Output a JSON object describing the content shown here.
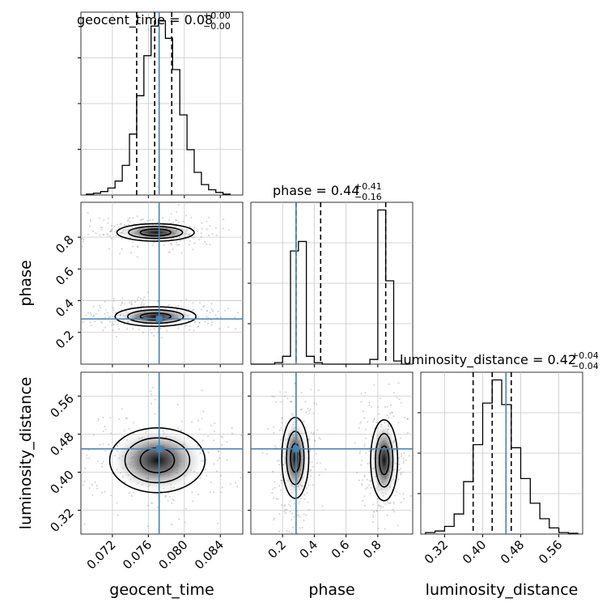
{
  "chart_data": {
    "type": "corner",
    "parameters": [
      "geocent_time",
      "phase",
      "luminosity_distance"
    ],
    "ranges": {
      "geocent_time": [
        0.0685,
        0.0865
      ],
      "phase": [
        0.0,
        1.02
      ],
      "luminosity_distance": [
        0.27,
        0.61
      ]
    },
    "truths": {
      "geocent_time": 0.0772,
      "phase": 0.285,
      "luminosity_distance": 0.449
    },
    "truth_color": "#4682b4",
    "grid": true,
    "ticks": {
      "geocent_time": [
        {
          "value": 0.072,
          "label": "0.072"
        },
        {
          "value": 0.076,
          "label": "0.076"
        },
        {
          "value": 0.08,
          "label": "0.080"
        },
        {
          "value": 0.084,
          "label": "0.084"
        }
      ],
      "phase": [
        {
          "value": 0.2,
          "label": "0.2"
        },
        {
          "value": 0.4,
          "label": "0.4"
        },
        {
          "value": 0.6,
          "label": "0.6"
        },
        {
          "value": 0.8,
          "label": "0.8"
        }
      ],
      "luminosity_distance": [
        {
          "value": 0.32,
          "label": "0.32"
        },
        {
          "value": 0.4,
          "label": "0.40"
        },
        {
          "value": 0.48,
          "label": "0.48"
        },
        {
          "value": 0.56,
          "label": "0.56"
        }
      ]
    },
    "titles": [
      {
        "prefix": "geocent_time = 0.08",
        "plus": "+0.00",
        "minus": "−0.00"
      },
      {
        "prefix": "phase = 0.44",
        "plus": "+0.41",
        "minus": "−0.16"
      },
      {
        "prefix": "luminosity_distance = 0.42",
        "plus": "+0.04",
        "minus": "−0.04"
      }
    ],
    "marginals": {
      "geocent_time": {
        "edges": [
          0.0691,
          0.0699,
          0.0707,
          0.0715,
          0.0723,
          0.0731,
          0.0739,
          0.0747,
          0.0755,
          0.0763,
          0.0771,
          0.0779,
          0.0787,
          0.0795,
          0.0803,
          0.0811,
          0.0819,
          0.0827,
          0.0835,
          0.0843,
          0.0851
        ],
        "counts": [
          0.5,
          1,
          2,
          4,
          8,
          17,
          35,
          57,
          80,
          97,
          100,
          90,
          72,
          46,
          26,
          13,
          6,
          3,
          1.5,
          0.5
        ],
        "quantiles": [
          0.0747,
          0.0767,
          0.0786
        ]
      },
      "phase": {
        "edges": [
          0.0,
          0.05,
          0.1,
          0.15,
          0.2,
          0.25,
          0.3,
          0.35,
          0.4,
          0.45,
          0.5,
          0.55,
          0.6,
          0.65,
          0.7,
          0.75,
          0.8,
          0.85,
          0.9,
          0.95,
          1.0
        ],
        "counts": [
          0,
          0,
          0,
          1,
          5,
          72,
          78,
          5,
          1,
          0,
          0,
          0,
          0,
          0,
          0,
          3,
          98,
          53,
          2,
          0
        ],
        "quantiles": [
          0.285,
          0.44,
          0.85
        ]
      },
      "luminosity_distance": {
        "edges": [
          0.28,
          0.3,
          0.32,
          0.34,
          0.36,
          0.38,
          0.4,
          0.42,
          0.44,
          0.46,
          0.48,
          0.5,
          0.52,
          0.54,
          0.56,
          0.58,
          0.6
        ],
        "counts": [
          1,
          2,
          5,
          13,
          34,
          58,
          85,
          100,
          84,
          56,
          36,
          20,
          10,
          4,
          1,
          0.5
        ],
        "quantiles": [
          0.38,
          0.42,
          0.46
        ]
      }
    },
    "contours": {
      "phase_vs_geocent_time": [
        {
          "cx": 0.0768,
          "cy": 0.83,
          "levels": [
            {
              "rx": 0.0043,
              "ry": 0.055
            },
            {
              "rx": 0.003,
              "ry": 0.038
            },
            {
              "rx": 0.0017,
              "ry": 0.022
            }
          ]
        },
        {
          "cx": 0.0768,
          "cy": 0.3,
          "levels": [
            {
              "rx": 0.0045,
              "ry": 0.062
            },
            {
              "rx": 0.0031,
              "ry": 0.042
            },
            {
              "rx": 0.0017,
              "ry": 0.022
            }
          ]
        }
      ],
      "luminosity_distance_vs_geocent_time": [
        {
          "cx": 0.077,
          "cy": 0.425,
          "levels": [
            {
              "rx": 0.0053,
              "ry": 0.068
            },
            {
              "rx": 0.0036,
              "ry": 0.047
            },
            {
              "rx": 0.0019,
              "ry": 0.026
            }
          ]
        }
      ],
      "luminosity_distance_vs_phase": [
        {
          "cx": 0.28,
          "cy": 0.43,
          "levels": [
            {
              "rx": 0.085,
              "ry": 0.085
            },
            {
              "rx": 0.055,
              "ry": 0.056
            },
            {
              "rx": 0.03,
              "ry": 0.03
            }
          ]
        },
        {
          "cx": 0.84,
          "cy": 0.425,
          "levels": [
            {
              "rx": 0.085,
              "ry": 0.085
            },
            {
              "rx": 0.055,
              "ry": 0.056
            },
            {
              "rx": 0.03,
              "ry": 0.03
            }
          ]
        }
      ]
    }
  }
}
